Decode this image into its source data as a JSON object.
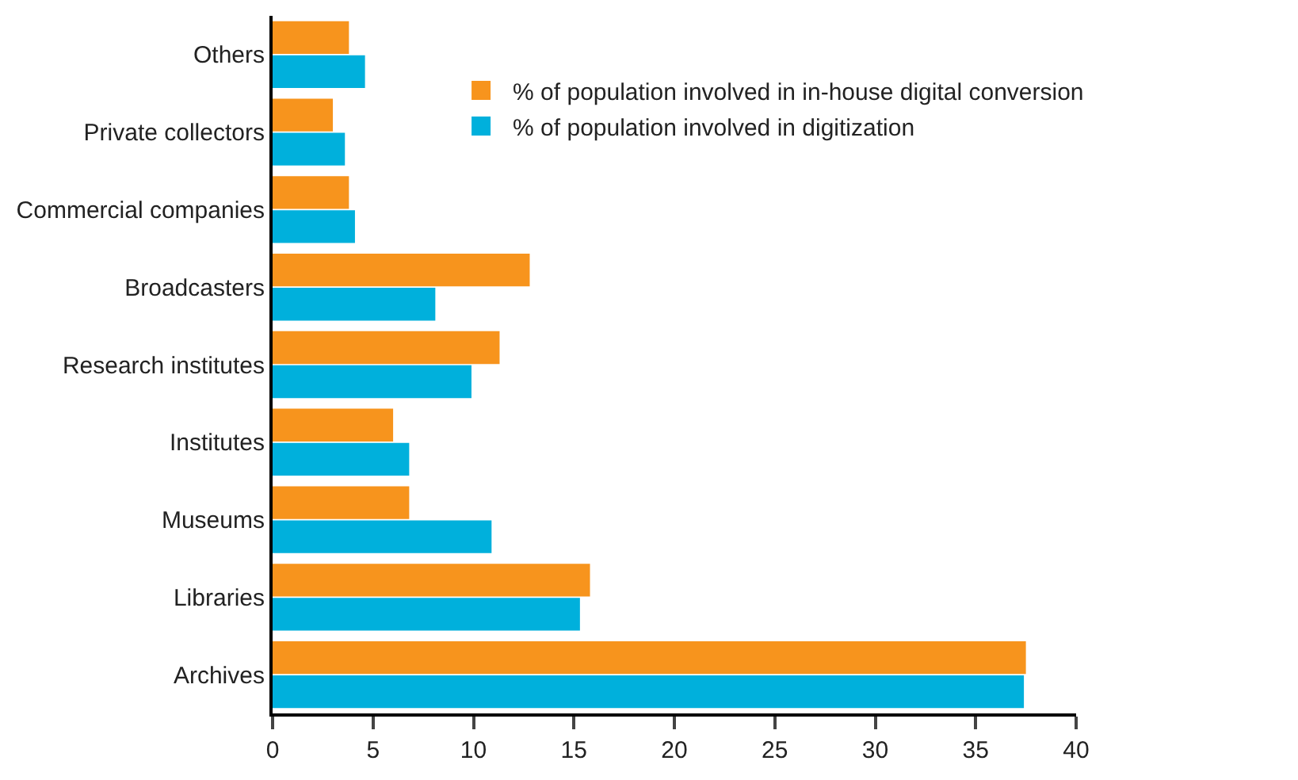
{
  "chart_data": {
    "type": "bar",
    "orientation": "horizontal",
    "categories": [
      "Others",
      "Private collectors",
      "Commercial companies",
      "Broadcasters",
      "Research institutes",
      "Institutes",
      "Museums",
      "Libraries",
      "Archives"
    ],
    "series": [
      {
        "name": "% of population involved in in-house digital conversion",
        "color": "#f7941d",
        "values": [
          3.8,
          3.0,
          3.8,
          12.8,
          11.3,
          6.0,
          6.8,
          15.8,
          37.5
        ]
      },
      {
        "name": "% of population involved in digitization",
        "color": "#00b0dc",
        "values": [
          4.6,
          3.6,
          4.1,
          8.1,
          9.9,
          6.8,
          10.9,
          15.3,
          37.4
        ]
      }
    ],
    "xlim": [
      0,
      40
    ],
    "xticks": [
      0,
      5,
      10,
      15,
      20,
      25,
      30,
      35,
      40
    ],
    "legend": "top right"
  }
}
